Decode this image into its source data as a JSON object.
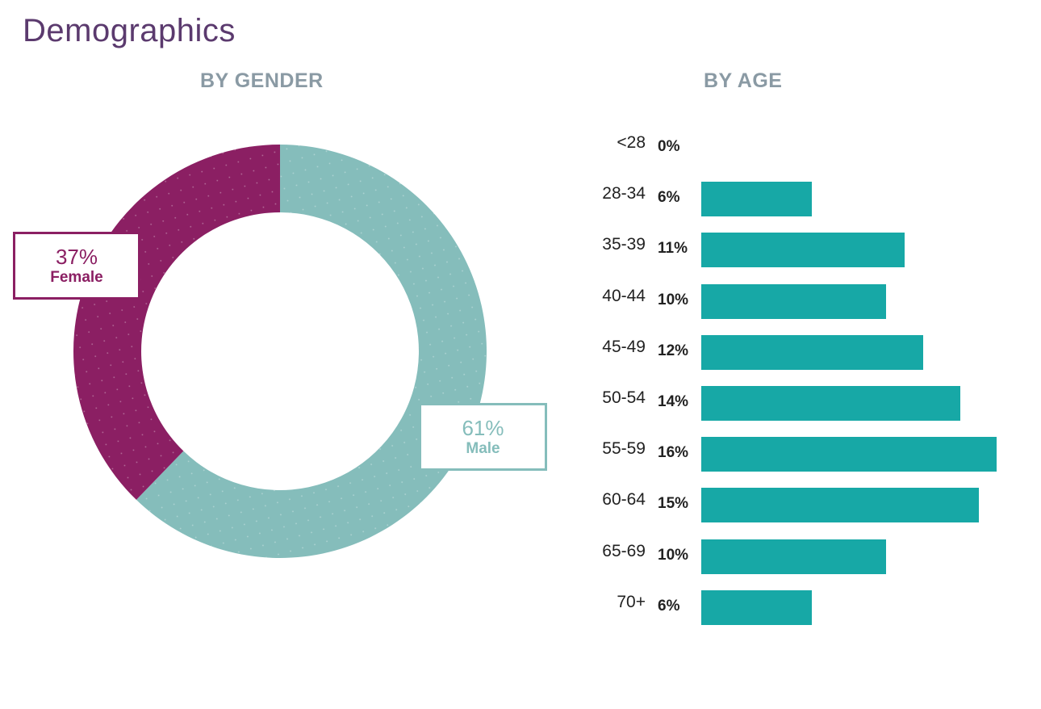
{
  "page": {
    "title": "Demographics"
  },
  "gender": {
    "section_title": "BY GENDER",
    "female": {
      "percent_label": "37%",
      "label": "Female"
    },
    "male": {
      "percent_label": "61%",
      "label": "Male"
    }
  },
  "age": {
    "section_title": "BY AGE"
  },
  "colors": {
    "female": "#8b1f63",
    "male": "#85bdbb",
    "bar": "#17a8a6",
    "title": "#5b3a6e",
    "section_title": "#8a9aa4"
  },
  "chart_data": [
    {
      "type": "pie",
      "title": "BY GENDER",
      "donut": true,
      "slices": [
        {
          "label": "Male",
          "value": 61
        },
        {
          "label": "Female",
          "value": 37
        }
      ],
      "unit": "%"
    },
    {
      "type": "bar",
      "orientation": "horizontal",
      "title": "BY AGE",
      "categories": [
        "<28",
        "28-34",
        "35-39",
        "40-44",
        "45-49",
        "50-54",
        "55-59",
        "60-64",
        "65-69",
        "70+"
      ],
      "values": [
        0,
        6,
        11,
        10,
        12,
        14,
        16,
        15,
        10,
        6
      ],
      "value_labels": [
        "0%",
        "6%",
        "11%",
        "10%",
        "12%",
        "14%",
        "16%",
        "15%",
        "10%",
        "6%"
      ],
      "unit": "%",
      "xlim": [
        0,
        16
      ]
    }
  ]
}
